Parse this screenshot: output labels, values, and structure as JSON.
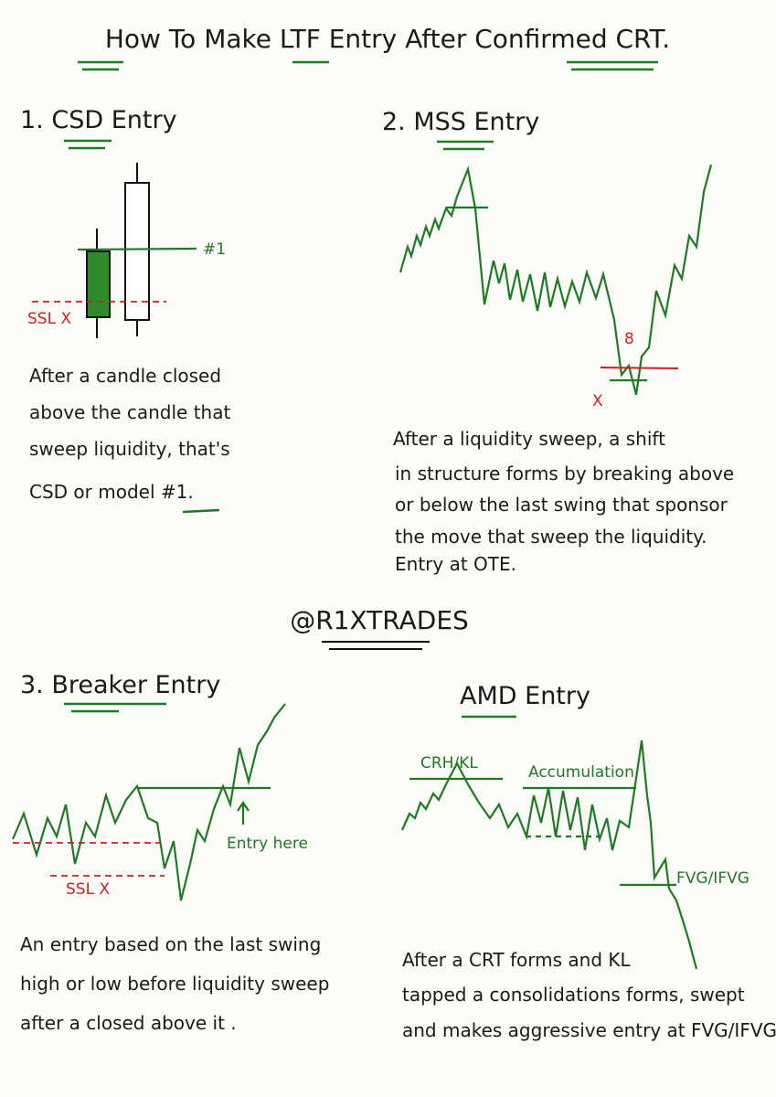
{
  "title": "How To Make LTF Entry After Confirmed CRT.",
  "handle": "@R1XTRADES",
  "sections": [
    {
      "heading": "1. CSD Entry",
      "labels": [
        "#1",
        "SSL X"
      ],
      "description": [
        "After a candle closed",
        "above the candle that",
        "sweep liquidity, that's",
        "CSD or model #1."
      ]
    },
    {
      "heading": "2. MSS Entry",
      "labels": [
        "8",
        "X"
      ],
      "description": [
        "After a liquidity sweep, a shift",
        "in structure forms by breaking above",
        "or below the last swing that sponsor",
        "the move that sweep the liquidity.",
        "Entry at OTE."
      ]
    },
    {
      "heading": "3. Breaker Entry",
      "labels": [
        "Entry here",
        "SSL X"
      ],
      "description": [
        "An entry based on the last swing",
        "high or low before liquidity sweep",
        "after a closed above it ."
      ]
    },
    {
      "heading": "AMD Entry",
      "labels": [
        "CRH/KL",
        "Accumulation",
        "FVG/IFVG"
      ],
      "description": [
        "After a CRT forms and KL",
        "tapped a consolidations forms, swept",
        "and makes aggressive entry at FVG/IFVG."
      ]
    }
  ]
}
